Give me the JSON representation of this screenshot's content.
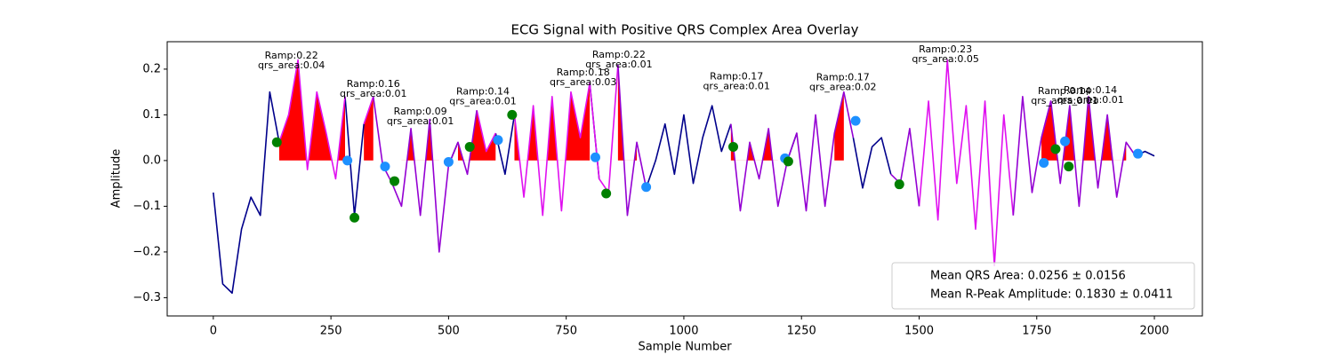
{
  "chart_data": {
    "type": "line",
    "title": "ECG Signal with Positive QRS Complex Area Overlay",
    "xlabel": "Sample Number",
    "ylabel": "Amplitude",
    "xlim": [
      -98,
      2102
    ],
    "ylim": [
      -0.34,
      0.26
    ],
    "xticks": [
      0,
      250,
      500,
      750,
      1000,
      1250,
      1500,
      1750,
      2000
    ],
    "yticks": [
      {
        "value": -0.3,
        "label": "−0.3"
      },
      {
        "value": -0.2,
        "label": "−0.2"
      },
      {
        "value": -0.1,
        "label": "−0.1"
      },
      {
        "value": 0,
        "label": "0.0"
      },
      0.1,
      0.2
    ],
    "x": [
      0,
      20,
      40,
      60,
      80,
      100,
      120,
      140,
      160,
      180,
      200,
      220,
      240,
      260,
      280,
      300,
      320,
      340,
      360,
      380,
      400,
      420,
      440,
      460,
      480,
      500,
      520,
      540,
      560,
      580,
      600,
      620,
      640,
      660,
      680,
      700,
      720,
      740,
      760,
      780,
      800,
      820,
      840,
      860,
      880,
      900,
      920,
      940,
      960,
      980,
      1000,
      1020,
      1040,
      1060,
      1080,
      1100,
      1120,
      1140,
      1160,
      1180,
      1200,
      1220,
      1240,
      1260,
      1280,
      1300,
      1320,
      1340,
      1360,
      1380,
      1400,
      1420,
      1440,
      1460,
      1480,
      1500,
      1520,
      1540,
      1560,
      1580,
      1600,
      1620,
      1640,
      1660,
      1680,
      1700,
      1720,
      1740,
      1760,
      1780,
      1800,
      1820,
      1840,
      1860,
      1880,
      1900,
      1920,
      1940,
      1960,
      1980,
      2000
    ],
    "series": [
      {
        "color": "#00008b",
        "values": [
          -0.07,
          -0.27,
          -0.29,
          -0.15,
          -0.08,
          -0.12,
          0.15,
          0.04,
          null,
          null,
          null,
          null,
          null,
          null,
          0.14,
          -0.12,
          0.08,
          null,
          null,
          null,
          null,
          null,
          null,
          null,
          null,
          -0.01,
          0.04,
          null,
          null,
          null,
          0.06,
          -0.03,
          0.1,
          null,
          null,
          null,
          null,
          null,
          null,
          null,
          0.17,
          -0.04,
          null,
          null,
          null,
          null,
          -0.06,
          0.0,
          0.08,
          -0.03,
          0.1,
          -0.05,
          0.05,
          0.12,
          0.02,
          0.08,
          null,
          null,
          null,
          null,
          null,
          0.0,
          0.06,
          null,
          null,
          null,
          null,
          null,
          0.05,
          -0.06,
          0.03,
          0.05,
          -0.03,
          null,
          null,
          null,
          null,
          null,
          null,
          null,
          null,
          null,
          null,
          null,
          null,
          null,
          null,
          null,
          null,
          null,
          null,
          null,
          null,
          null,
          null,
          null,
          null,
          null,
          0.01,
          0.02,
          0.01
        ]
      },
      {
        "color": "#e010f0",
        "values": [
          null,
          null,
          null,
          null,
          null,
          null,
          null,
          0.04,
          0.1,
          0.22,
          -0.02,
          0.15,
          0.06,
          -0.04,
          0.14,
          null,
          0.08,
          0.14,
          null,
          null,
          null,
          null,
          null,
          null,
          null,
          null,
          null,
          null,
          0.11,
          0.02,
          0.06,
          null,
          0.1,
          -0.08,
          0.12,
          -0.12,
          0.14,
          -0.11,
          0.15,
          0.05,
          0.17,
          -0.04,
          -0.07,
          0.21,
          null,
          null,
          null,
          null,
          null,
          null,
          null,
          null,
          null,
          null,
          null,
          null,
          null,
          null,
          null,
          null,
          null,
          null,
          null,
          null,
          null,
          null,
          null,
          null,
          null,
          null,
          null,
          null,
          null,
          null,
          null,
          -0.1,
          0.13,
          -0.13,
          0.22,
          -0.05,
          0.12,
          -0.15,
          0.13,
          -0.23,
          0.1,
          -0.12,
          null,
          null,
          0.05,
          0.13,
          null,
          null,
          null,
          null,
          null,
          null,
          null,
          null,
          null,
          null,
          null
        ]
      },
      {
        "color": "#9400d3",
        "values": [
          null,
          null,
          null,
          null,
          null,
          null,
          null,
          null,
          null,
          null,
          null,
          null,
          null,
          null,
          null,
          null,
          null,
          0.14,
          -0.01,
          -0.05,
          -0.1,
          0.07,
          -0.12,
          0.09,
          -0.2,
          -0.01,
          0.04,
          -0.03,
          0.11,
          null,
          null,
          null,
          null,
          null,
          null,
          null,
          null,
          null,
          null,
          null,
          null,
          null,
          null,
          0.21,
          -0.12,
          0.04,
          -0.06,
          null,
          null,
          null,
          null,
          null,
          null,
          null,
          null,
          0.08,
          -0.11,
          0.04,
          -0.04,
          0.07,
          -0.1,
          0.0,
          0.06,
          -0.11,
          0.1,
          -0.1,
          0.06,
          0.15,
          0.05,
          null,
          null,
          null,
          -0.03,
          -0.05,
          0.07,
          -0.1,
          null,
          null,
          null,
          null,
          null,
          null,
          null,
          null,
          null,
          -0.12,
          0.14,
          -0.07,
          0.05,
          0.13,
          -0.05,
          0.12,
          -0.1,
          0.14,
          -0.06,
          0.1,
          -0.08,
          0.04,
          0.01,
          null,
          null
        ]
      }
    ],
    "area": {
      "color": "#ff0000",
      "values": [
        null,
        null,
        null,
        null,
        null,
        null,
        null,
        0.04,
        0.1,
        0.22,
        -0.02,
        0.15,
        0.06,
        -0.04,
        0.14,
        null,
        0.08,
        0.14,
        null,
        null,
        -0.1,
        0.07,
        -0.12,
        0.09,
        -0.2,
        null,
        0.04,
        -0.03,
        0.11,
        0.02,
        0.06,
        null,
        0.1,
        -0.08,
        0.12,
        -0.12,
        0.14,
        -0.11,
        0.15,
        0.05,
        0.17,
        null,
        null,
        0.21,
        -0.12,
        0.04,
        null,
        null,
        null,
        null,
        null,
        null,
        null,
        null,
        null,
        0.08,
        -0.11,
        0.04,
        -0.04,
        0.07,
        -0.1,
        null,
        null,
        null,
        null,
        null,
        0.06,
        0.15,
        null,
        null,
        null,
        null,
        null,
        null,
        null,
        null,
        null,
        null,
        null,
        null,
        null,
        null,
        null,
        null,
        null,
        null,
        null,
        null,
        0.05,
        0.13,
        -0.05,
        0.12,
        -0.1,
        0.14,
        -0.06,
        0.1,
        -0.08,
        0.04,
        null,
        null,
        null
      ]
    },
    "markers": [
      {
        "color": "#1e90ff",
        "x": [
          285,
          365,
          500,
          605,
          812,
          920,
          1215,
          1365,
          1765,
          1810,
          1965
        ],
        "values": [
          0.0,
          -0.013,
          -0.003,
          0.045,
          0.007,
          -0.058,
          0.005,
          0.087,
          -0.005,
          0.042,
          0.015
        ]
      },
      {
        "color": "#008000",
        "x": [
          135,
          300,
          385,
          545,
          635,
          835,
          1105,
          1222,
          1458,
          1790,
          1818
        ],
        "values": [
          0.04,
          -0.125,
          -0.045,
          0.03,
          0.1,
          -0.072,
          0.03,
          -0.002,
          -0.052,
          0.025,
          -0.013
        ]
      }
    ],
    "annotations": [
      {
        "x": 166,
        "y": 0.229,
        "lines": [
          "Ramp:0.22",
          "qrs_area:0.04"
        ]
      },
      {
        "x": 340,
        "y": 0.167,
        "lines": [
          "Ramp:0.16",
          "qrs_area:0.01"
        ]
      },
      {
        "x": 440,
        "y": 0.107,
        "lines": [
          "Ramp:0.09",
          "qrs_area:0.01"
        ]
      },
      {
        "x": 573,
        "y": 0.15,
        "lines": [
          "Ramp:0.14",
          "qrs_area:0.01"
        ]
      },
      {
        "x": 786,
        "y": 0.192,
        "lines": [
          "Ramp:0.18",
          "qrs_area:0.03"
        ]
      },
      {
        "x": 862,
        "y": 0.231,
        "lines": [
          "Ramp:0.22",
          "qrs_area:0.01"
        ]
      },
      {
        "x": 1112,
        "y": 0.183,
        "lines": [
          "Ramp:0.17",
          "qrs_area:0.01"
        ]
      },
      {
        "x": 1338,
        "y": 0.181,
        "lines": [
          "Ramp:0.17",
          "qrs_area:0.02"
        ]
      },
      {
        "x": 1556,
        "y": 0.243,
        "lines": [
          "Ramp:0.23",
          "qrs_area:0.05"
        ]
      },
      {
        "x": 1809,
        "y": 0.151,
        "lines": [
          "Ramp:0.14",
          "qrs_area:0.01"
        ]
      },
      {
        "x": 1864,
        "y": 0.153,
        "lines": [
          "Ramp:0.14",
          "qrs_area:0.01"
        ]
      }
    ],
    "legend": {
      "position": "lower right",
      "entries": [
        "Mean QRS Area: 0.0256 ± 0.0156",
        "Mean R-Peak Amplitude: 0.1830 ± 0.0411"
      ]
    }
  }
}
